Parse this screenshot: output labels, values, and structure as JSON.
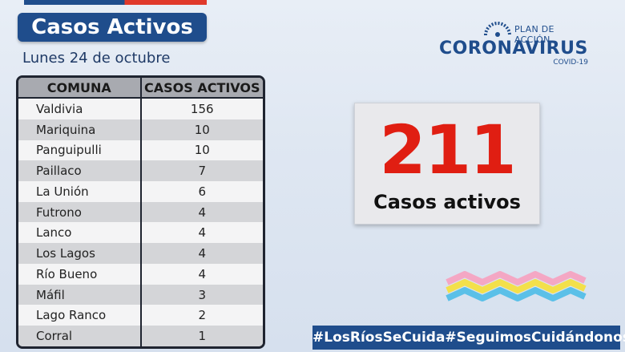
{
  "header": {
    "title": "Casos Activos",
    "date": "Lunes 24 de octubre"
  },
  "table": {
    "columns": [
      "COMUNA",
      "CASOS ACTIVOS"
    ],
    "rows": [
      {
        "comuna": "Valdivia",
        "casos": "156"
      },
      {
        "comuna": "Mariquina",
        "casos": "10"
      },
      {
        "comuna": "Panguipulli",
        "casos": "10"
      },
      {
        "comuna": "Paillaco",
        "casos": "7"
      },
      {
        "comuna": "La Unión",
        "casos": "6"
      },
      {
        "comuna": "Futrono",
        "casos": "4"
      },
      {
        "comuna": "Lanco",
        "casos": "4"
      },
      {
        "comuna": "Los Lagos",
        "casos": "4"
      },
      {
        "comuna": "Río Bueno",
        "casos": "4"
      },
      {
        "comuna": "Máfil",
        "casos": "3"
      },
      {
        "comuna": "Lago Ranco",
        "casos": "2"
      },
      {
        "comuna": "Corral",
        "casos": "1"
      }
    ]
  },
  "logo": {
    "plan": "PLAN DE ACCIÓN",
    "name": "CORONAVIRUS",
    "sub": "COVID-19"
  },
  "summary": {
    "total": "211",
    "label": "Casos activos"
  },
  "hashtags": [
    "#LosRíosSeCuida",
    "#SeguimosCuidándonos"
  ],
  "colors": {
    "brand_blue": "#1f4d8c",
    "accent_red": "#e01e12"
  }
}
